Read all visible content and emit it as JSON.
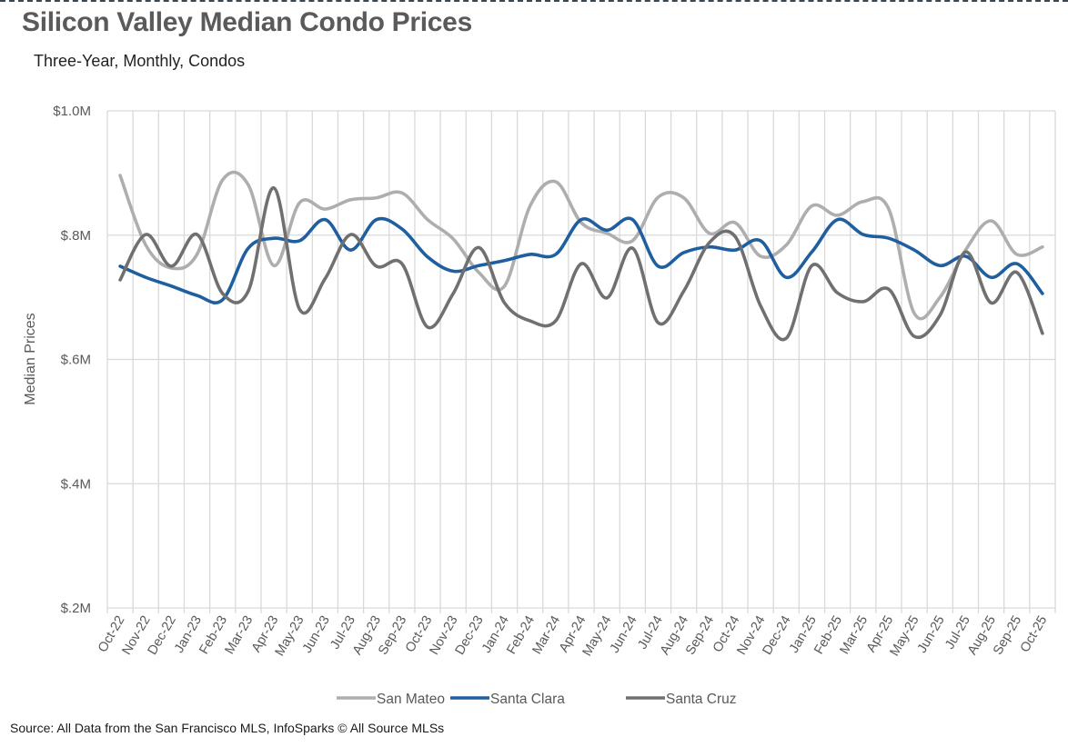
{
  "chart_data": {
    "type": "line",
    "title": "Silicon Valley Median Condo Prices",
    "subtitle": "Three-Year, Monthly, Condos",
    "xlabel": "",
    "ylabel": "Median Prices",
    "ylim": [
      0.2,
      1.0
    ],
    "y_unit": "millions USD",
    "y_ticks": [
      1.0,
      0.8,
      0.6,
      0.4,
      0.2
    ],
    "y_tick_labels": [
      "$1.0M",
      "$.8M",
      "$.6M",
      "$.4M",
      "$.2M"
    ],
    "grid": true,
    "smooth": true,
    "legend_position": "bottom",
    "categories": [
      "Oct-22",
      "Nov-22",
      "Dec-22",
      "Jan-23",
      "Feb-23",
      "Mar-23",
      "Apr-23",
      "May-23",
      "Jun-23",
      "Jul-23",
      "Aug-23",
      "Sep-23",
      "Oct-23",
      "Nov-23",
      "Dec-23",
      "Jan-24",
      "Feb-24",
      "Mar-24",
      "Apr-24",
      "May-24",
      "Jun-24",
      "Jul-24",
      "Aug-24",
      "Sep-24",
      "Oct-24",
      "Nov-24",
      "Dec-24",
      "Jan-25",
      "Feb-25",
      "Mar-25",
      "Apr-25",
      "May-25",
      "Jun-25",
      "Jul-25",
      "Aug-25",
      "Sep-25",
      "Oct-25"
    ],
    "series": [
      {
        "name": "San Mateo",
        "color": "#AEAEAE",
        "values": [
          0.896,
          0.784,
          0.747,
          0.769,
          0.889,
          0.881,
          0.751,
          0.852,
          0.842,
          0.857,
          0.86,
          0.868,
          0.825,
          0.794,
          0.74,
          0.718,
          0.847,
          0.886,
          0.82,
          0.803,
          0.791,
          0.861,
          0.86,
          0.803,
          0.82,
          0.766,
          0.784,
          0.847,
          0.832,
          0.854,
          0.842,
          0.674,
          0.7,
          0.776,
          0.823,
          0.769,
          0.781
        ]
      },
      {
        "name": "Santa Clara",
        "color": "#1F5F9F",
        "values": [
          0.75,
          0.732,
          0.718,
          0.703,
          0.696,
          0.779,
          0.795,
          0.791,
          0.825,
          0.776,
          0.825,
          0.81,
          0.765,
          0.742,
          0.751,
          0.759,
          0.769,
          0.769,
          0.825,
          0.808,
          0.825,
          0.75,
          0.772,
          0.781,
          0.776,
          0.791,
          0.732,
          0.773,
          0.825,
          0.801,
          0.795,
          0.776,
          0.751,
          0.766,
          0.732,
          0.754,
          0.706
        ]
      },
      {
        "name": "Santa Cruz",
        "color": "#707070",
        "values": [
          0.728,
          0.801,
          0.75,
          0.801,
          0.706,
          0.71,
          0.876,
          0.681,
          0.73,
          0.801,
          0.75,
          0.754,
          0.652,
          0.706,
          0.78,
          0.691,
          0.662,
          0.662,
          0.754,
          0.699,
          0.779,
          0.659,
          0.71,
          0.788,
          0.798,
          0.686,
          0.634,
          0.751,
          0.707,
          0.693,
          0.713,
          0.637,
          0.671,
          0.773,
          0.691,
          0.74,
          0.642
        ]
      }
    ]
  },
  "source": "Source: All Data from the San Francisco MLS, InfoSparks © All Source MLSs"
}
